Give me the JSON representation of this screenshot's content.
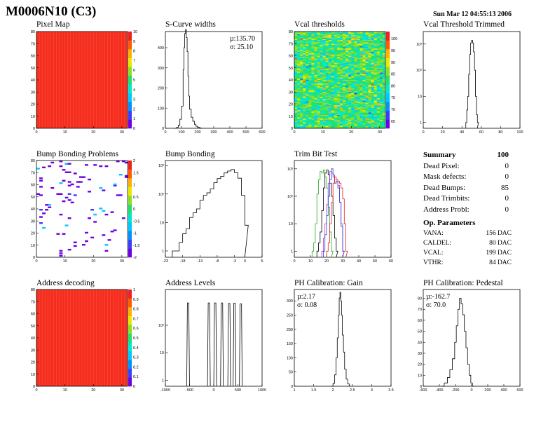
{
  "page": {
    "title": "M0006N10 (C3)",
    "date": "Sun Mar 12 04:55:13 2006"
  },
  "colors": {
    "map_fill": "#f52d1e",
    "line": "#000000",
    "trim_green": "#22b022",
    "trim_blue": "#2e3bd6",
    "trim_red": "#e0221d",
    "trim_magenta": "#b636c8",
    "palette": [
      "#7000e0",
      "#3c3cff",
      "#0090ff",
      "#00c8ff",
      "#00e8d0",
      "#20e070",
      "#8ce020",
      "#e8e800",
      "#ffb000",
      "#ff5a00",
      "#f02020"
    ]
  },
  "panels": {
    "pixel_map": {
      "title": "Pixel Map",
      "chart_data": {
        "type": "heatmap",
        "title": "Pixel Map",
        "x_range": [
          0,
          32
        ],
        "y_range": [
          0,
          80
        ],
        "x_ticks": [
          "0",
          "10",
          "20",
          "30"
        ],
        "y_ticks": [
          "0",
          "10",
          "20",
          "30",
          "40",
          "50",
          "60",
          "70",
          "80"
        ],
        "z_ticks": [
          "0",
          "1",
          "2",
          "3",
          "4",
          "5",
          "6",
          "7",
          "8",
          "9",
          "10"
        ],
        "z_range": [
          0,
          10
        ],
        "value": 10,
        "note_values": "all pixels uniform at maximum"
      }
    },
    "scurve": {
      "title": "S-Curve widths",
      "mu": "µ:135.70",
      "sigma": "σ: 25.10",
      "chart_data": {
        "type": "line",
        "title": "S-Curve widths",
        "x_range": [
          0,
          600
        ],
        "y_range": [
          0,
          480
        ],
        "x_ticks": [
          "0",
          "100",
          "200",
          "300",
          "400",
          "500",
          "600"
        ],
        "y_ticks": [
          "0",
          "100",
          "200",
          "300",
          "400"
        ],
        "x": [
          60,
          70,
          80,
          90,
          100,
          110,
          115,
          120,
          125,
          130,
          135,
          140,
          145,
          150,
          160,
          170,
          180,
          190,
          200,
          210,
          220
        ],
        "y": [
          0,
          5,
          15,
          45,
          110,
          290,
          400,
          470,
          490,
          450,
          380,
          260,
          160,
          95,
          55,
          35,
          20,
          10,
          5,
          2,
          0
        ]
      }
    },
    "vcal_thresholds": {
      "title": "Vcal thresholds",
      "chart_data": {
        "type": "heatmap",
        "title": "Vcal thresholds",
        "x_range": [
          0,
          32
        ],
        "y_range": [
          0,
          80
        ],
        "x_ticks": [
          "0",
          "10",
          "20",
          "30"
        ],
        "y_ticks": [
          "0",
          "10",
          "20",
          "30",
          "40",
          "50",
          "60",
          "70",
          "80"
        ],
        "z_ticks": [
          "65",
          "70",
          "75",
          "80",
          "85",
          "90",
          "95",
          "100"
        ],
        "z_range": [
          62,
          103
        ],
        "typical_value": 78
      }
    },
    "vcal_trimmed": {
      "title": "Vcal Threshold Trimmed",
      "chart_data": {
        "type": "line",
        "title": "Vcal Threshold Trimmed",
        "log_y": true,
        "x_range": [
          0,
          100
        ],
        "y_range": [
          0.6,
          3000
        ],
        "x_ticks": [
          "0",
          "20",
          "40",
          "60",
          "80",
          "100"
        ],
        "y_ticks": [
          "1",
          "10",
          "10²",
          "10³"
        ],
        "x": [
          44,
          45,
          46,
          47,
          48,
          49,
          50,
          51,
          52,
          53,
          54,
          55,
          56
        ],
        "y": [
          1,
          3,
          10,
          70,
          400,
          1100,
          1400,
          1100,
          500,
          100,
          10,
          2,
          1
        ]
      }
    },
    "bump_problems": {
      "title": "Bump Bonding Problems",
      "chart_data": {
        "type": "heatmap",
        "title": "Bump Bonding Problems",
        "x_range": [
          0,
          32
        ],
        "y_range": [
          0,
          80
        ],
        "x_ticks": [
          "0",
          "10",
          "20",
          "30"
        ],
        "y_ticks": [
          "0",
          "10",
          "20",
          "30",
          "40",
          "50",
          "60",
          "70",
          "80"
        ],
        "z_ticks": [
          "-2",
          "-1.5",
          "-1",
          "-0.5",
          "0",
          "0.5",
          "1",
          "1.5",
          "2"
        ],
        "z_range": [
          -2,
          2
        ],
        "note_values": "85 scattered dead bumps, mostly purple"
      }
    },
    "bump_bonding": {
      "title": "Bump Bonding",
      "chart_data": {
        "type": "line",
        "title": "Bump Bonding",
        "log_y": true,
        "x_range": [
          -23,
          5
        ],
        "y_range": [
          0.6,
          1500
        ],
        "x_ticks": [
          "-23",
          "-18",
          "-13",
          "-8",
          "-3",
          "0",
          "5"
        ],
        "y_ticks": [
          "1",
          "10",
          "10²",
          "10³"
        ],
        "x": [
          -21,
          -20,
          -19,
          -18,
          -17,
          -16,
          -15,
          -14,
          -13,
          -12,
          -11,
          -10,
          -9,
          -8,
          -7,
          -6,
          -5,
          -4,
          -3,
          -2,
          -1,
          0
        ],
        "y": [
          1,
          1,
          2,
          4,
          6,
          15,
          22,
          30,
          60,
          90,
          110,
          150,
          250,
          350,
          420,
          550,
          640,
          720,
          560,
          360,
          90,
          8
        ]
      }
    },
    "trim_bit": {
      "title": "Trim Bit Test",
      "chart_data": {
        "type": "line",
        "title": "Trim Bit Test",
        "log_y": true,
        "x_range": [
          0,
          60
        ],
        "y_range": [
          0.6,
          2000
        ],
        "x_ticks": [
          "0",
          "10",
          "20",
          "30",
          "40",
          "50",
          "60"
        ],
        "y_ticks": [
          "1",
          "10",
          "10²",
          "10³"
        ],
        "series": [
          {
            "color": "#22b022",
            "x": [
              11,
              12,
              13,
              14,
              15,
              16,
              17,
              18,
              19,
              20,
              21,
              22,
              23
            ],
            "y": [
              1,
              2,
              10,
              120,
              400,
              800,
              700,
              900,
              500,
              200,
              40,
              5,
              1
            ]
          },
          {
            "color": "#000000",
            "x": [
              14,
              15,
              16,
              17,
              18,
              19,
              20,
              21,
              22,
              23,
              24,
              25,
              26
            ],
            "y": [
              1,
              2,
              5,
              30,
              200,
              700,
              900,
              600,
              300,
              100,
              20,
              3,
              1
            ]
          },
          {
            "color": "#b636c8",
            "x": [
              17,
              18,
              19,
              20,
              21,
              22,
              23,
              24,
              25,
              26,
              27,
              28,
              29,
              30
            ],
            "y": [
              1,
              3,
              10,
              50,
              300,
              800,
              700,
              500,
              300,
              400,
              250,
              60,
              10,
              1
            ]
          },
          {
            "color": "#2e3bd6",
            "x": [
              18,
              19,
              20,
              21,
              22,
              23,
              24,
              25,
              26,
              27,
              28,
              29,
              30
            ],
            "y": [
              1,
              4,
              20,
              100,
              400,
              1000,
              600,
              300,
              350,
              200,
              60,
              8,
              1
            ]
          },
          {
            "color": "#e0221d",
            "x": [
              20,
              21,
              22,
              23,
              24,
              25,
              26,
              27,
              28,
              29,
              30,
              31,
              32
            ],
            "y": [
              1,
              2,
              10,
              60,
              300,
              500,
              400,
              350,
              300,
              200,
              80,
              10,
              1
            ]
          }
        ]
      }
    },
    "address_decoding": {
      "title": "Address decoding",
      "chart_data": {
        "type": "heatmap",
        "title": "Address decoding",
        "x_range": [
          0,
          32
        ],
        "y_range": [
          0,
          80
        ],
        "x_ticks": [
          "0",
          "10",
          "20",
          "30"
        ],
        "y_ticks": [
          "0",
          "10",
          "20",
          "30",
          "40",
          "50",
          "60",
          "70",
          "80"
        ],
        "z_ticks": [
          "0",
          "0.1",
          "0.2",
          "0.3",
          "0.4",
          "0.5",
          "0.6",
          "0.7",
          "0.8",
          "0.9",
          "1"
        ],
        "z_range": [
          0,
          1
        ],
        "value": 1
      }
    },
    "address_levels": {
      "title": "Address Levels",
      "chart_data": {
        "type": "line",
        "title": "Address Levels",
        "log_y": true,
        "x_range": [
          -1000,
          1000
        ],
        "y_range": [
          0.6,
          2000
        ],
        "x_ticks": [
          "-1000",
          "-500",
          "0",
          "500",
          "1000"
        ],
        "y_ticks": [
          "1",
          "10",
          "10²"
        ],
        "peaks_x": [
          -530,
          -100,
          30,
          170,
          320,
          430,
          560
        ],
        "peaks_y": [
          650,
          650,
          650,
          650,
          620,
          640,
          600
        ]
      }
    },
    "ph_gain": {
      "title": "PH Calibration: Gain",
      "mu": "µ:2.17",
      "sigma": "σ: 0.08",
      "chart_data": {
        "type": "line",
        "title": "PH Calibration: Gain",
        "x_range": [
          1,
          3.5
        ],
        "y_range": [
          0,
          340
        ],
        "x_ticks": [
          "1",
          "1.5",
          "2",
          "2.5",
          "3",
          "3.5"
        ],
        "y_ticks": [
          "0",
          "50",
          "100",
          "150",
          "200",
          "250",
          "300"
        ],
        "x": [
          1.95,
          2.0,
          2.04,
          2.08,
          2.11,
          2.14,
          2.16,
          2.18,
          2.2,
          2.22,
          2.24,
          2.27,
          2.3,
          2.34,
          2.38,
          2.42
        ],
        "y": [
          0,
          10,
          40,
          100,
          170,
          250,
          310,
          330,
          300,
          250,
          180,
          120,
          60,
          25,
          8,
          0
        ]
      }
    },
    "ph_pedestal": {
      "title": "PH Calibration: Pedestal",
      "mu": "µ:-162.7",
      "sigma": "σ: 70.0",
      "chart_data": {
        "type": "line",
        "title": "PH Calibration: Pedestal",
        "x_range": [
          -600,
          600
        ],
        "y_range": [
          0,
          88
        ],
        "x_ticks": [
          "-600",
          "-400",
          "-200",
          "0",
          "200",
          "400",
          "600"
        ],
        "y_ticks": [
          "0",
          "10",
          "20",
          "30",
          "40",
          "50",
          "60",
          "70",
          "80"
        ],
        "x": [
          -380,
          -340,
          -300,
          -270,
          -240,
          -210,
          -190,
          -170,
          -150,
          -130,
          -110,
          -90,
          -70,
          -50,
          -30,
          -10,
          10
        ],
        "y": [
          0,
          3,
          8,
          15,
          25,
          40,
          55,
          70,
          80,
          75,
          65,
          50,
          35,
          20,
          10,
          3,
          0
        ]
      }
    }
  },
  "summary": {
    "header": "Summary",
    "total": "100",
    "rows": [
      {
        "label": "Dead Pixel:",
        "value": "0"
      },
      {
        "label": "Mask defects:",
        "value": "0"
      },
      {
        "label": "Dead Bumps:",
        "value": "85"
      },
      {
        "label": "Dead Trimbits:",
        "value": "0"
      },
      {
        "label": "Address Probl:",
        "value": "0"
      }
    ]
  },
  "op_parameters": {
    "header": "Op. Parameters",
    "rows": [
      {
        "label": "VANA:",
        "value": "156 DAC"
      },
      {
        "label": "CALDEL:",
        "value": "80 DAC"
      },
      {
        "label": "VCAL:",
        "value": "199 DAC"
      },
      {
        "label": "VTHR:",
        "value": "84 DAC"
      }
    ]
  }
}
